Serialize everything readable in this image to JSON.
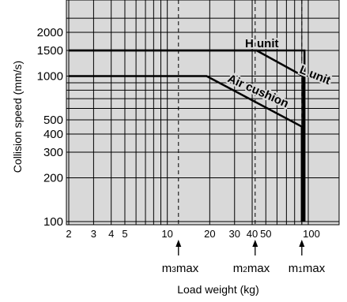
{
  "title": "",
  "chart_data": {
    "type": "line",
    "title": "",
    "xlabel": "Load weight (kg)",
    "ylabel": "Collision speed (mm/s)",
    "xscale": "log",
    "yscale": "log",
    "xlim": [
      2,
      150
    ],
    "ylim": [
      100,
      2500
    ],
    "grid": true,
    "x_ticks": [
      2,
      3,
      4,
      5,
      10,
      20,
      30,
      40,
      50,
      100
    ],
    "x_tick_labels": [
      "2",
      "3",
      "4",
      "5",
      "10",
      "20",
      "30",
      "40",
      "50",
      "100"
    ],
    "y_ticks": [
      100,
      200,
      300,
      400,
      500,
      1000,
      1500,
      2000
    ],
    "y_tick_labels": [
      "100",
      "200",
      "300",
      "400",
      "500",
      "1000",
      "1500",
      "2000"
    ],
    "series": [
      {
        "name": "H unit",
        "x": [
          2,
          94,
          94
        ],
        "y": [
          1500,
          1500,
          100
        ]
      },
      {
        "name": "L unit",
        "x": [
          2,
          43,
          92,
          92
        ],
        "y": [
          1500,
          1500,
          1000,
          100
        ]
      },
      {
        "name": "Air cushion",
        "x": [
          2,
          19,
          90,
          90
        ],
        "y": [
          1000,
          1000,
          450,
          100
        ]
      }
    ],
    "reference_lines": [
      {
        "label": "m3max",
        "x": 12
      },
      {
        "label": "m2max",
        "x": 42
      },
      {
        "label": "m1max",
        "x": 90
      }
    ]
  },
  "markers": [
    {
      "main": "m",
      "sub": "3",
      "suffix": "max"
    },
    {
      "main": "m",
      "sub": "2",
      "suffix": "max"
    },
    {
      "main": "m",
      "sub": "1",
      "suffix": "max"
    }
  ],
  "colors": {
    "plot_bg": "#d9d9d9",
    "grid": "#000000",
    "line": "#000000"
  }
}
